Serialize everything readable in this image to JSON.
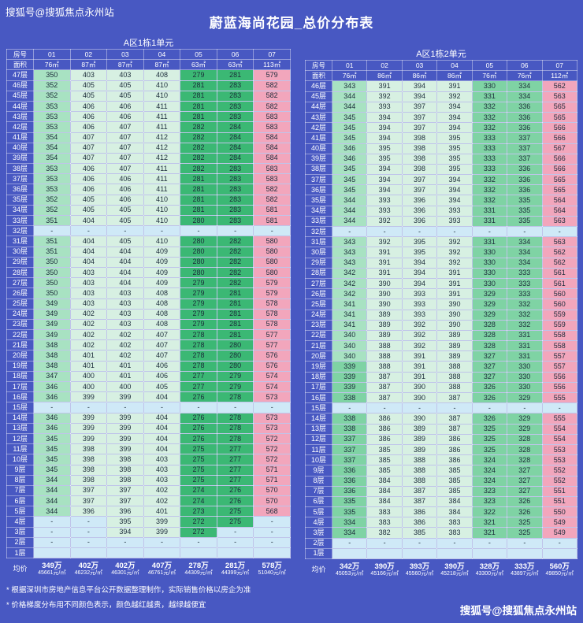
{
  "page": {
    "watermark_top": "搜狐号@搜狐焦点永州站",
    "watermark_bottom": "搜狐号@搜狐焦点永州站",
    "title": "蔚蓝海尚花园_总价分布表",
    "footnotes": [
      "* 根据深圳市房地产信息平台公开数据整理制作，实际销售价格以房企为准",
      "* 价格梯度分布用不同颜色表示，颜色越红越贵，越绿越便宜"
    ]
  },
  "colors": {
    "background": "#4858c2",
    "pink_expensive": "#f2a6bc",
    "pale_green": "#d7f0e2",
    "light_green": "#a8e2c2",
    "medium_green": "#7fd3a4",
    "dark_green_cheap": "#3bb874",
    "refuge_blue": "#cfe9f7"
  },
  "chart_data": [
    {
      "type": "table",
      "title": "A区1栋1单元",
      "corner_top": "房号",
      "corner_bottom": "面积",
      "room_numbers": [
        "01",
        "02",
        "03",
        "04",
        "05",
        "06",
        "07"
      ],
      "areas": [
        "76㎡",
        "87㎡",
        "87㎡",
        "87㎡",
        "63㎡",
        "63㎡",
        "113㎡"
      ],
      "rows": [
        [
          "47层",
          "350",
          "403",
          "403",
          "408",
          "279",
          "281",
          "579"
        ],
        [
          "46层",
          "352",
          "405",
          "405",
          "410",
          "281",
          "283",
          "582"
        ],
        [
          "45层",
          "352",
          "405",
          "405",
          "410",
          "281",
          "283",
          "582"
        ],
        [
          "44层",
          "353",
          "406",
          "406",
          "411",
          "281",
          "283",
          "582"
        ],
        [
          "43层",
          "353",
          "406",
          "406",
          "411",
          "281",
          "283",
          "583"
        ],
        [
          "42层",
          "353",
          "406",
          "407",
          "411",
          "282",
          "284",
          "583"
        ],
        [
          "41层",
          "354",
          "407",
          "407",
          "412",
          "282",
          "284",
          "584"
        ],
        [
          "40层",
          "354",
          "407",
          "407",
          "412",
          "282",
          "284",
          "584"
        ],
        [
          "39层",
          "354",
          "407",
          "407",
          "412",
          "282",
          "284",
          "584"
        ],
        [
          "38层",
          "353",
          "406",
          "407",
          "411",
          "282",
          "283",
          "583"
        ],
        [
          "37层",
          "353",
          "406",
          "406",
          "411",
          "281",
          "283",
          "583"
        ],
        [
          "36层",
          "353",
          "406",
          "406",
          "411",
          "281",
          "283",
          "582"
        ],
        [
          "35层",
          "352",
          "405",
          "406",
          "410",
          "281",
          "283",
          "582"
        ],
        [
          "34层",
          "352",
          "405",
          "405",
          "410",
          "281",
          "283",
          "581"
        ],
        [
          "33层",
          "351",
          "404",
          "405",
          "410",
          "280",
          "283",
          "581"
        ],
        [
          "32层",
          "-",
          "-",
          "-",
          "-",
          "-",
          "-",
          "-"
        ],
        [
          "31层",
          "351",
          "404",
          "405",
          "410",
          "280",
          "282",
          "580"
        ],
        [
          "30层",
          "351",
          "404",
          "404",
          "409",
          "280",
          "282",
          "580"
        ],
        [
          "29层",
          "350",
          "404",
          "404",
          "409",
          "280",
          "282",
          "580"
        ],
        [
          "28层",
          "350",
          "403",
          "404",
          "409",
          "280",
          "282",
          "580"
        ],
        [
          "27层",
          "350",
          "403",
          "404",
          "409",
          "279",
          "282",
          "579"
        ],
        [
          "26层",
          "350",
          "403",
          "403",
          "408",
          "279",
          "281",
          "579"
        ],
        [
          "25层",
          "349",
          "403",
          "403",
          "408",
          "279",
          "281",
          "578"
        ],
        [
          "24层",
          "349",
          "402",
          "403",
          "408",
          "279",
          "281",
          "578"
        ],
        [
          "23层",
          "349",
          "402",
          "403",
          "408",
          "279",
          "281",
          "578"
        ],
        [
          "22层",
          "349",
          "402",
          "402",
          "407",
          "278",
          "281",
          "577"
        ],
        [
          "21层",
          "348",
          "402",
          "402",
          "407",
          "278",
          "280",
          "577"
        ],
        [
          "20层",
          "348",
          "401",
          "402",
          "407",
          "278",
          "280",
          "576"
        ],
        [
          "19层",
          "348",
          "401",
          "401",
          "406",
          "278",
          "280",
          "576"
        ],
        [
          "18层",
          "347",
          "400",
          "401",
          "406",
          "277",
          "279",
          "574"
        ],
        [
          "17层",
          "346",
          "400",
          "400",
          "405",
          "277",
          "279",
          "574"
        ],
        [
          "16层",
          "346",
          "399",
          "399",
          "404",
          "276",
          "278",
          "573"
        ],
        [
          "15层",
          "-",
          "-",
          "-",
          "-",
          "-",
          "-",
          "-"
        ],
        [
          "14层",
          "346",
          "399",
          "399",
          "404",
          "276",
          "278",
          "573"
        ],
        [
          "13层",
          "346",
          "399",
          "399",
          "404",
          "276",
          "278",
          "573"
        ],
        [
          "12层",
          "345",
          "399",
          "399",
          "404",
          "276",
          "278",
          "572"
        ],
        [
          "11层",
          "345",
          "398",
          "399",
          "404",
          "275",
          "277",
          "572"
        ],
        [
          "10层",
          "345",
          "398",
          "398",
          "403",
          "275",
          "277",
          "572"
        ],
        [
          "9层",
          "345",
          "398",
          "398",
          "403",
          "275",
          "277",
          "571"
        ],
        [
          "8层",
          "344",
          "398",
          "398",
          "403",
          "275",
          "277",
          "571"
        ],
        [
          "7层",
          "344",
          "397",
          "397",
          "402",
          "274",
          "276",
          "570"
        ],
        [
          "6层",
          "344",
          "397",
          "397",
          "402",
          "274",
          "276",
          "570"
        ],
        [
          "5层",
          "344",
          "396",
          "396",
          "401",
          "273",
          "275",
          "568"
        ],
        [
          "4层",
          "-",
          "-",
          "395",
          "399",
          "272",
          "275",
          "-"
        ],
        [
          "3层",
          "-",
          "-",
          "394",
          "399",
          "272",
          "-",
          "-"
        ],
        [
          "2层",
          "-",
          "-",
          "-",
          "-",
          "-",
          "-",
          "-"
        ],
        [
          "1层",
          "",
          "",
          "",
          "",
          "",
          "",
          ""
        ]
      ],
      "avg_label": "均价",
      "avg_prices": [
        "349万",
        "402万",
        "402万",
        "407万",
        "278万",
        "281万",
        "578万"
      ],
      "avg_unit_prices": [
        "45661元/㎡",
        "46232元/㎡",
        "46301元/㎡",
        "46761元/㎡",
        "44309元/㎡",
        "44399元/㎡",
        "51040元/㎡"
      ]
    },
    {
      "type": "table",
      "title": "A区1栋2单元",
      "corner_top": "房号",
      "corner_bottom": "面积",
      "room_numbers": [
        "01",
        "02",
        "03",
        "04",
        "05",
        "06",
        "07"
      ],
      "areas": [
        "76㎡",
        "86㎡",
        "86㎡",
        "86㎡",
        "76㎡",
        "76㎡",
        "112㎡"
      ],
      "rows": [
        [
          "46层",
          "343",
          "391",
          "394",
          "391",
          "330",
          "334",
          "562"
        ],
        [
          "45层",
          "344",
          "392",
          "394",
          "392",
          "331",
          "334",
          "563"
        ],
        [
          "44层",
          "344",
          "393",
          "397",
          "394",
          "332",
          "336",
          "565"
        ],
        [
          "43层",
          "345",
          "394",
          "397",
          "394",
          "332",
          "336",
          "565"
        ],
        [
          "42层",
          "345",
          "394",
          "397",
          "394",
          "332",
          "336",
          "566"
        ],
        [
          "41层",
          "345",
          "394",
          "398",
          "395",
          "333",
          "337",
          "566"
        ],
        [
          "40层",
          "346",
          "395",
          "398",
          "395",
          "333",
          "337",
          "567"
        ],
        [
          "39层",
          "346",
          "395",
          "398",
          "395",
          "333",
          "337",
          "566"
        ],
        [
          "38层",
          "345",
          "394",
          "398",
          "395",
          "333",
          "336",
          "566"
        ],
        [
          "37层",
          "345",
          "394",
          "397",
          "394",
          "332",
          "336",
          "565"
        ],
        [
          "36层",
          "345",
          "394",
          "397",
          "394",
          "332",
          "336",
          "565"
        ],
        [
          "35层",
          "344",
          "393",
          "396",
          "394",
          "332",
          "335",
          "564"
        ],
        [
          "34层",
          "344",
          "393",
          "396",
          "393",
          "331",
          "335",
          "564"
        ],
        [
          "33层",
          "344",
          "392",
          "396",
          "393",
          "331",
          "335",
          "563"
        ],
        [
          "32层",
          "-",
          "-",
          "-",
          "-",
          "-",
          "-",
          "-"
        ],
        [
          "31层",
          "343",
          "392",
          "395",
          "392",
          "331",
          "334",
          "563"
        ],
        [
          "30层",
          "343",
          "391",
          "395",
          "392",
          "330",
          "334",
          "562"
        ],
        [
          "29层",
          "343",
          "391",
          "394",
          "392",
          "330",
          "334",
          "562"
        ],
        [
          "28层",
          "342",
          "391",
          "394",
          "391",
          "330",
          "333",
          "561"
        ],
        [
          "27层",
          "342",
          "390",
          "394",
          "391",
          "330",
          "333",
          "561"
        ],
        [
          "26层",
          "342",
          "390",
          "393",
          "391",
          "329",
          "333",
          "560"
        ],
        [
          "25层",
          "341",
          "390",
          "393",
          "390",
          "329",
          "332",
          "560"
        ],
        [
          "24层",
          "341",
          "389",
          "393",
          "390",
          "329",
          "332",
          "559"
        ],
        [
          "23层",
          "341",
          "389",
          "392",
          "390",
          "328",
          "332",
          "559"
        ],
        [
          "22层",
          "340",
          "389",
          "392",
          "389",
          "328",
          "331",
          "558"
        ],
        [
          "21层",
          "340",
          "388",
          "392",
          "389",
          "328",
          "331",
          "558"
        ],
        [
          "20层",
          "340",
          "388",
          "391",
          "389",
          "327",
          "331",
          "557"
        ],
        [
          "19层",
          "339",
          "388",
          "391",
          "388",
          "327",
          "330",
          "557"
        ],
        [
          "18层",
          "339",
          "387",
          "391",
          "388",
          "327",
          "330",
          "556"
        ],
        [
          "17层",
          "339",
          "387",
          "390",
          "388",
          "326",
          "330",
          "556"
        ],
        [
          "16层",
          "338",
          "387",
          "390",
          "387",
          "326",
          "329",
          "555"
        ],
        [
          "15层",
          "-",
          "-",
          "-",
          "-",
          "-",
          "-",
          "-"
        ],
        [
          "14层",
          "338",
          "386",
          "390",
          "387",
          "326",
          "329",
          "555"
        ],
        [
          "13层",
          "338",
          "386",
          "389",
          "387",
          "325",
          "329",
          "554"
        ],
        [
          "12层",
          "337",
          "386",
          "389",
          "386",
          "325",
          "328",
          "554"
        ],
        [
          "11层",
          "337",
          "385",
          "389",
          "386",
          "325",
          "328",
          "553"
        ],
        [
          "10层",
          "337",
          "385",
          "388",
          "386",
          "324",
          "328",
          "553"
        ],
        [
          "9层",
          "336",
          "385",
          "388",
          "385",
          "324",
          "327",
          "552"
        ],
        [
          "8层",
          "336",
          "384",
          "388",
          "385",
          "324",
          "327",
          "552"
        ],
        [
          "7层",
          "336",
          "384",
          "387",
          "385",
          "323",
          "327",
          "551"
        ],
        [
          "6层",
          "335",
          "384",
          "387",
          "384",
          "323",
          "326",
          "551"
        ],
        [
          "5层",
          "335",
          "383",
          "386",
          "384",
          "322",
          "326",
          "550"
        ],
        [
          "4层",
          "334",
          "383",
          "386",
          "383",
          "321",
          "325",
          "549"
        ],
        [
          "3层",
          "334",
          "382",
          "385",
          "383",
          "321",
          "325",
          "549"
        ],
        [
          "2层",
          "-",
          "-",
          "-",
          "-",
          "-",
          "-",
          "-"
        ],
        [
          "1层",
          "",
          "",
          "",
          "",
          "",
          "",
          ""
        ]
      ],
      "avg_label": "均价",
      "avg_prices": [
        "342万",
        "390万",
        "393万",
        "390万",
        "328万",
        "333万",
        "560万"
      ],
      "avg_unit_prices": [
        "45053元/㎡",
        "45166元/㎡",
        "45560元/㎡",
        "45218元/㎡",
        "43300元/㎡",
        "43897元/㎡",
        "49850元/㎡"
      ]
    }
  ]
}
